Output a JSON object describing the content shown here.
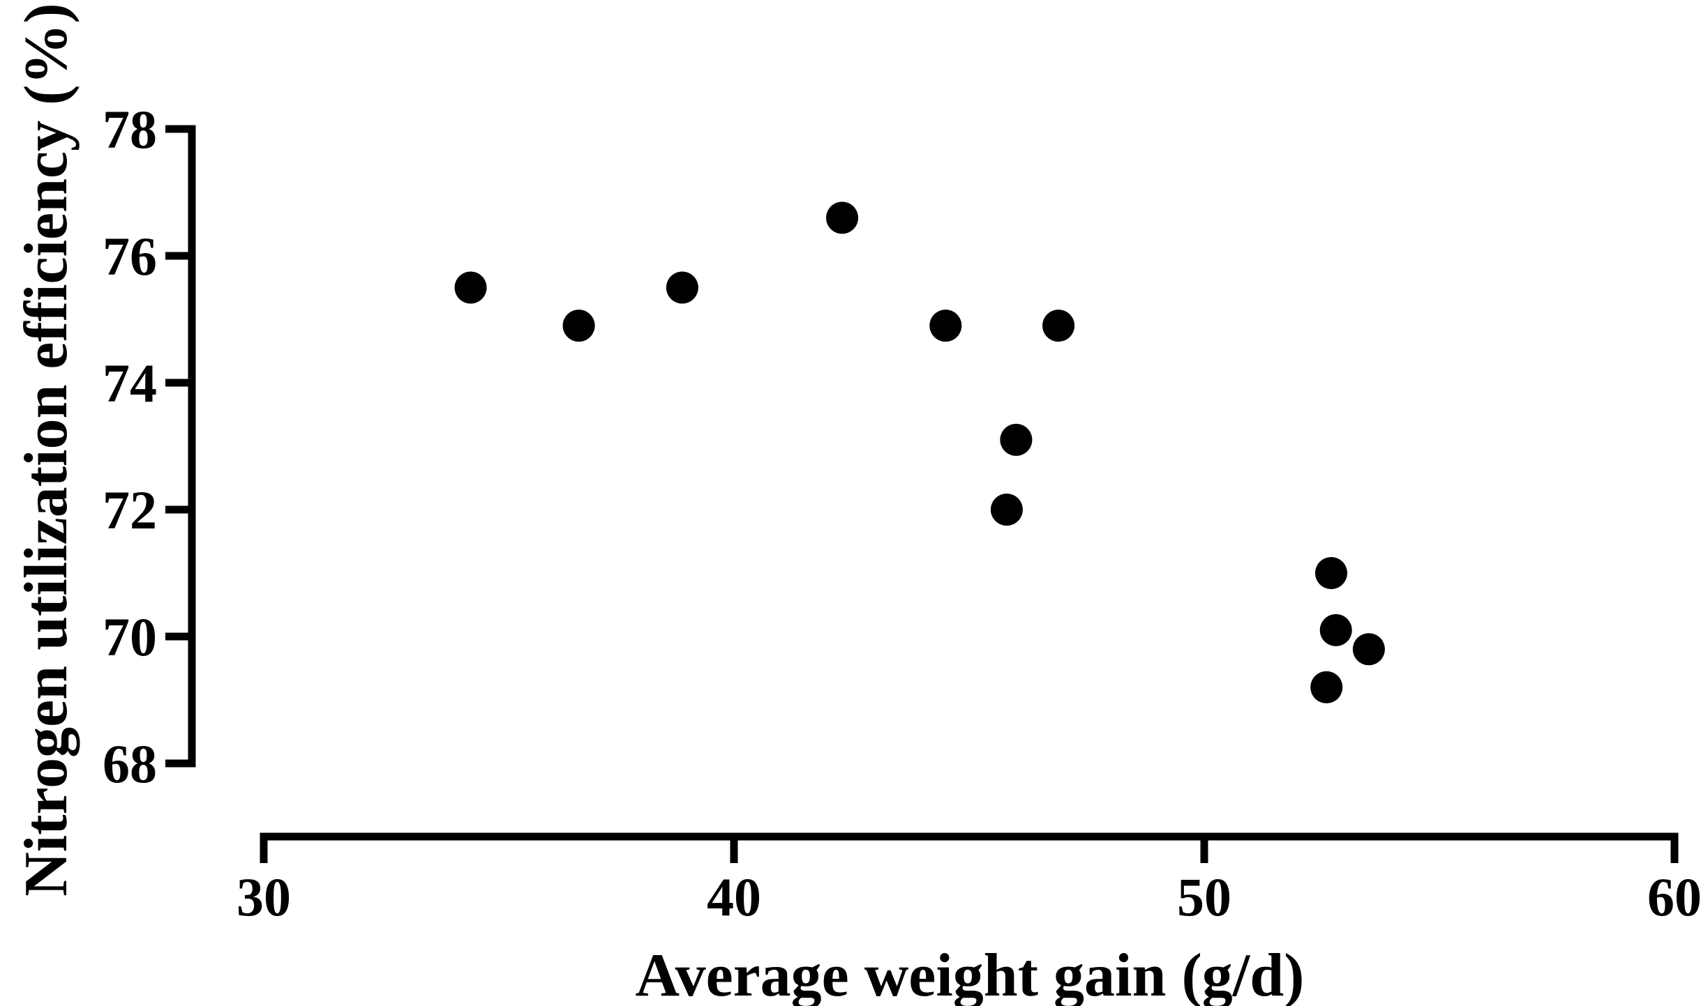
{
  "figure": {
    "background": "#ffffff",
    "axis_color": "#000000",
    "marker_color": "#000000"
  },
  "chart_data": {
    "type": "scatter",
    "title": "",
    "xlabel": "Average weight gain (g/d)",
    "ylabel": "Nitrogen utilization efficiency (%)",
    "xlim": [
      30,
      60
    ],
    "ylim": [
      68,
      78
    ],
    "x_ticks": [
      30,
      40,
      50,
      60
    ],
    "y_ticks": [
      78,
      76,
      74,
      72,
      70,
      68
    ],
    "grid": false,
    "legend": "none",
    "marker": {
      "shape": "circle",
      "color": "#000000",
      "radius_px": 23
    },
    "points": [
      {
        "x": 34.4,
        "y": 75.5
      },
      {
        "x": 36.7,
        "y": 74.9
      },
      {
        "x": 38.9,
        "y": 75.5
      },
      {
        "x": 42.3,
        "y": 76.6
      },
      {
        "x": 44.5,
        "y": 74.9
      },
      {
        "x": 46.0,
        "y": 73.1
      },
      {
        "x": 45.8,
        "y": 72.0
      },
      {
        "x": 46.9,
        "y": 74.9
      },
      {
        "x": 52.7,
        "y": 71.0
      },
      {
        "x": 52.8,
        "y": 70.1
      },
      {
        "x": 53.5,
        "y": 69.8
      },
      {
        "x": 52.6,
        "y": 69.2
      }
    ]
  }
}
